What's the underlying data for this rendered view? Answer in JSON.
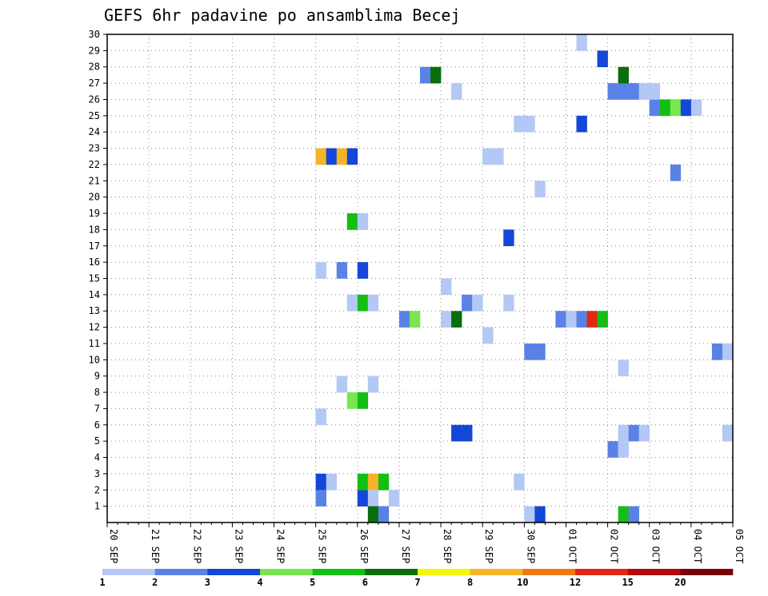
{
  "chart_data": {
    "type": "heatmap",
    "title": "GEFS 6hr padavine po ansamblima Becej",
    "xlabel": "",
    "ylabel": "",
    "x_ticks": [
      "20 SEP",
      "21 SEP",
      "22 SEP",
      "23 SEP",
      "24 SEP",
      "25 SEP",
      "26 SEP",
      "27 SEP",
      "28 SEP",
      "29 SEP",
      "30 SEP",
      "01 OCT",
      "02 OCT",
      "03 OCT",
      "04 OCT",
      "05 OCT"
    ],
    "y_ticks": [
      "1",
      "2",
      "3",
      "4",
      "5",
      "6",
      "7",
      "8",
      "9",
      "10",
      "11",
      "12",
      "13",
      "14",
      "15",
      "16",
      "17",
      "18",
      "19",
      "20",
      "21",
      "22",
      "23",
      "24",
      "25",
      "26",
      "27",
      "28",
      "29",
      "30"
    ],
    "xlim": [
      0,
      60
    ],
    "ylim": [
      0,
      30
    ],
    "time_step": "6hr",
    "grid": true,
    "legend": {
      "placement": "bottom",
      "labels": [
        "1",
        "2",
        "3",
        "4",
        "5",
        "6",
        "7",
        "8",
        "10",
        "12",
        "15",
        "20"
      ],
      "colors": [
        "#b4c8f5",
        "#5a82e6",
        "#1446d7",
        "#78e650",
        "#14be14",
        "#0a6e0a",
        "#f5f50a",
        "#f5b428",
        "#f07814",
        "#e12814",
        "#b40a0a",
        "#780505"
      ]
    },
    "levels": [
      1,
      2,
      3,
      4,
      5,
      6,
      7,
      8,
      10,
      12,
      15,
      20
    ],
    "cells": [
      {
        "step": 20,
        "member": 2,
        "level": 3
      },
      {
        "step": 20,
        "member": 1,
        "level": 2
      },
      {
        "step": 21,
        "member": 2,
        "level": 1
      },
      {
        "step": 24,
        "member": 1,
        "level": 3
      },
      {
        "step": 24,
        "member": 2,
        "level": 5
      },
      {
        "step": 25,
        "member": 2,
        "level": 8
      },
      {
        "step": 25,
        "member": 1,
        "level": 1
      },
      {
        "step": 25,
        "member": 0,
        "level": 6
      },
      {
        "step": 26,
        "member": 2,
        "level": 5
      },
      {
        "step": 26,
        "member": 0,
        "level": 2
      },
      {
        "step": 27,
        "member": 1,
        "level": 1
      },
      {
        "step": 39,
        "member": 2,
        "level": 1
      },
      {
        "step": 40,
        "member": 0,
        "level": 1
      },
      {
        "step": 41,
        "member": 0,
        "level": 3
      },
      {
        "step": 49,
        "member": 0,
        "level": 5
      },
      {
        "step": 50,
        "member": 0,
        "level": 2
      },
      {
        "step": 20,
        "member": 6,
        "level": 1
      },
      {
        "step": 23,
        "member": 7,
        "level": 4
      },
      {
        "step": 24,
        "member": 7,
        "level": 5
      },
      {
        "step": 22,
        "member": 8,
        "level": 1
      },
      {
        "step": 25,
        "member": 8,
        "level": 1
      },
      {
        "step": 49,
        "member": 9,
        "level": 1
      },
      {
        "step": 33,
        "member": 5,
        "level": 3
      },
      {
        "step": 34,
        "member": 5,
        "level": 3
      },
      {
        "step": 48,
        "member": 4,
        "level": 2
      },
      {
        "step": 49,
        "member": 5,
        "level": 1
      },
      {
        "step": 49,
        "member": 4,
        "level": 1
      },
      {
        "step": 50,
        "member": 5,
        "level": 2
      },
      {
        "step": 51,
        "member": 5,
        "level": 1
      },
      {
        "step": 59,
        "member": 5,
        "level": 1
      },
      {
        "step": 40,
        "member": 10,
        "level": 2
      },
      {
        "step": 41,
        "member": 10,
        "level": 2
      },
      {
        "step": 58,
        "member": 10,
        "level": 2
      },
      {
        "step": 59,
        "member": 10,
        "level": 1
      },
      {
        "step": 36,
        "member": 11,
        "level": 1
      },
      {
        "step": 28,
        "member": 12,
        "level": 2
      },
      {
        "step": 29,
        "member": 12,
        "level": 4
      },
      {
        "step": 32,
        "member": 12,
        "level": 1
      },
      {
        "step": 33,
        "member": 12,
        "level": 6
      },
      {
        "step": 43,
        "member": 12,
        "level": 2
      },
      {
        "step": 44,
        "member": 12,
        "level": 1
      },
      {
        "step": 45,
        "member": 12,
        "level": 2
      },
      {
        "step": 46,
        "member": 12,
        "level": 10
      },
      {
        "step": 47,
        "member": 12,
        "level": 5
      },
      {
        "step": 23,
        "member": 13,
        "level": 1
      },
      {
        "step": 24,
        "member": 13,
        "level": 5
      },
      {
        "step": 25,
        "member": 13,
        "level": 1
      },
      {
        "step": 34,
        "member": 13,
        "level": 2
      },
      {
        "step": 35,
        "member": 13,
        "level": 1
      },
      {
        "step": 38,
        "member": 13,
        "level": 1
      },
      {
        "step": 32,
        "member": 14,
        "level": 1
      },
      {
        "step": 20,
        "member": 15,
        "level": 1
      },
      {
        "step": 22,
        "member": 15,
        "level": 2
      },
      {
        "step": 24,
        "member": 15,
        "level": 3
      },
      {
        "step": 38,
        "member": 17,
        "level": 3
      },
      {
        "step": 23,
        "member": 18,
        "level": 5
      },
      {
        "step": 24,
        "member": 18,
        "level": 1
      },
      {
        "step": 41,
        "member": 20,
        "level": 1
      },
      {
        "step": 54,
        "member": 21,
        "level": 2
      },
      {
        "step": 20,
        "member": 22,
        "level": 8
      },
      {
        "step": 21,
        "member": 22,
        "level": 3
      },
      {
        "step": 22,
        "member": 22,
        "level": 8
      },
      {
        "step": 23,
        "member": 22,
        "level": 3
      },
      {
        "step": 36,
        "member": 22,
        "level": 1
      },
      {
        "step": 37,
        "member": 22,
        "level": 1
      },
      {
        "step": 39,
        "member": 24,
        "level": 1
      },
      {
        "step": 40,
        "member": 24,
        "level": 1
      },
      {
        "step": 45,
        "member": 24,
        "level": 3
      },
      {
        "step": 52,
        "member": 25,
        "level": 2
      },
      {
        "step": 53,
        "member": 25,
        "level": 5
      },
      {
        "step": 54,
        "member": 25,
        "level": 4
      },
      {
        "step": 55,
        "member": 25,
        "level": 3
      },
      {
        "step": 56,
        "member": 25,
        "level": 1
      },
      {
        "step": 33,
        "member": 26,
        "level": 1
      },
      {
        "step": 48,
        "member": 26,
        "level": 2
      },
      {
        "step": 49,
        "member": 26,
        "level": 2
      },
      {
        "step": 50,
        "member": 26,
        "level": 2
      },
      {
        "step": 51,
        "member": 26,
        "level": 1
      },
      {
        "step": 52,
        "member": 26,
        "level": 1
      },
      {
        "step": 30,
        "member": 27,
        "level": 2
      },
      {
        "step": 31,
        "member": 27,
        "level": 6
      },
      {
        "step": 49,
        "member": 27,
        "level": 6
      },
      {
        "step": 47,
        "member": 28,
        "level": 3
      },
      {
        "step": 45,
        "member": 29,
        "level": 1
      }
    ]
  }
}
